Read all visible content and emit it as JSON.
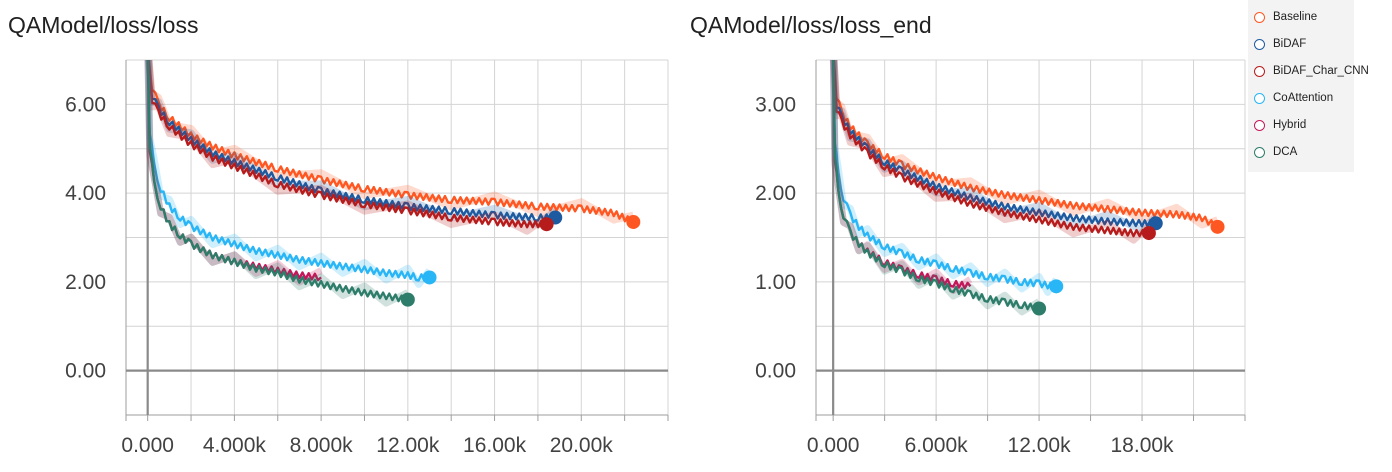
{
  "legend": {
    "position": "top-right",
    "items": [
      {
        "name": "Baseline",
        "color": "#ff5722"
      },
      {
        "name": "BiDAF",
        "color": "#1e5aa0"
      },
      {
        "name": "BiDAF_Char_CNN",
        "color": "#b71c1c"
      },
      {
        "name": "CoAttention",
        "color": "#29b6f6"
      },
      {
        "name": "Hybrid",
        "color": "#c2185b"
      },
      {
        "name": "DCA",
        "color": "#2e7d6b"
      }
    ]
  },
  "chart_data": [
    {
      "type": "line",
      "title": "QAModel/loss/loss",
      "xlabel": "",
      "ylabel": "",
      "xlim": [
        -1000,
        24000
      ],
      "ylim": [
        -1.0,
        7.0
      ],
      "grid": true,
      "xticks": [
        0,
        4000,
        8000,
        12000,
        16000,
        20000
      ],
      "xtick_labels": [
        "0.000",
        "4.000k",
        "8.000k",
        "12.00k",
        "16.00k",
        "20.00k"
      ],
      "yticks": [
        0,
        2,
        4,
        6
      ],
      "ytick_labels": [
        "0.00",
        "2.00",
        "4.00",
        "6.00"
      ],
      "series": [
        {
          "name": "Baseline",
          "color": "#ff5722",
          "x": [
            0,
            200,
            500,
            1000,
            2000,
            3000,
            4000,
            6000,
            8000,
            10000,
            12000,
            14000,
            16000,
            18000,
            20000,
            21500,
            22400
          ],
          "y": [
            7.2,
            6.4,
            6.0,
            5.7,
            5.3,
            5.05,
            4.85,
            4.55,
            4.3,
            4.1,
            3.95,
            3.85,
            3.8,
            3.7,
            3.65,
            3.55,
            3.35
          ]
        },
        {
          "name": "BiDAF",
          "color": "#1e5aa0",
          "x": [
            0,
            200,
            500,
            1000,
            2000,
            3000,
            4000,
            6000,
            8000,
            10000,
            12000,
            14000,
            16000,
            18000,
            18800
          ],
          "y": [
            7.2,
            6.2,
            5.9,
            5.6,
            5.2,
            4.9,
            4.7,
            4.35,
            4.05,
            3.85,
            3.7,
            3.6,
            3.5,
            3.45,
            3.45
          ]
        },
        {
          "name": "BiDAF_Char_CNN",
          "color": "#b71c1c",
          "x": [
            0,
            200,
            500,
            1000,
            2000,
            3000,
            4000,
            6000,
            8000,
            10000,
            12000,
            14000,
            16000,
            17500,
            18400
          ],
          "y": [
            7.2,
            6.1,
            5.8,
            5.5,
            5.1,
            4.8,
            4.6,
            4.2,
            3.95,
            3.75,
            3.6,
            3.45,
            3.35,
            3.3,
            3.3
          ]
        },
        {
          "name": "CoAttention",
          "color": "#29b6f6",
          "x": [
            0,
            100,
            300,
            600,
            1000,
            1500,
            2000,
            3000,
            4000,
            5000,
            6000,
            7000,
            8000,
            9000,
            10000,
            11000,
            12000,
            12500,
            13000
          ],
          "y": [
            7.2,
            5.4,
            4.6,
            4.1,
            3.7,
            3.45,
            3.25,
            3.0,
            2.85,
            2.7,
            2.6,
            2.5,
            2.42,
            2.35,
            2.28,
            2.2,
            2.15,
            2.1,
            2.1
          ]
        },
        {
          "name": "Hybrid",
          "color": "#c2185b",
          "x": [
            0,
            100,
            300,
            600,
            1000,
            1500,
            2000,
            3000,
            4000,
            5000,
            6000,
            7000,
            8000
          ],
          "y": [
            7.2,
            5.0,
            4.2,
            3.7,
            3.3,
            3.05,
            2.85,
            2.6,
            2.45,
            2.35,
            2.25,
            2.15,
            2.1
          ]
        },
        {
          "name": "DCA",
          "color": "#2e7d6b",
          "x": [
            0,
            100,
            300,
            600,
            1000,
            1500,
            2000,
            3000,
            4000,
            5000,
            6000,
            7000,
            8000,
            9000,
            10000,
            11000,
            12000
          ],
          "y": [
            7.2,
            5.1,
            4.2,
            3.7,
            3.3,
            3.05,
            2.85,
            2.6,
            2.45,
            2.3,
            2.2,
            2.05,
            1.95,
            1.85,
            1.75,
            1.68,
            1.6
          ]
        }
      ]
    },
    {
      "type": "line",
      "title": "QAModel/loss/loss_end",
      "xlabel": "",
      "ylabel": "",
      "xlim": [
        -1000,
        24000
      ],
      "ylim": [
        -0.5,
        3.5
      ],
      "grid": true,
      "xticks": [
        0,
        6000,
        12000,
        18000
      ],
      "xtick_labels": [
        "0.000",
        "6.000k",
        "12.00k",
        "18.00k"
      ],
      "yticks": [
        0,
        1,
        2,
        3
      ],
      "ytick_labels": [
        "0.00",
        "1.00",
        "2.00",
        "3.00"
      ],
      "series": [
        {
          "name": "Baseline",
          "color": "#ff5722",
          "x": [
            0,
            200,
            500,
            1000,
            2000,
            3000,
            4000,
            6000,
            8000,
            10000,
            12000,
            14000,
            16000,
            18000,
            20000,
            21500,
            22400
          ],
          "y": [
            3.6,
            3.1,
            2.9,
            2.75,
            2.55,
            2.42,
            2.32,
            2.18,
            2.06,
            1.98,
            1.92,
            1.86,
            1.82,
            1.78,
            1.76,
            1.72,
            1.62
          ]
        },
        {
          "name": "BiDAF",
          "color": "#1e5aa0",
          "x": [
            0,
            200,
            500,
            1000,
            2000,
            3000,
            4000,
            6000,
            8000,
            10000,
            12000,
            14000,
            16000,
            18000,
            18800
          ],
          "y": [
            3.6,
            3.0,
            2.85,
            2.7,
            2.5,
            2.35,
            2.25,
            2.08,
            1.95,
            1.85,
            1.78,
            1.72,
            1.68,
            1.66,
            1.66
          ]
        },
        {
          "name": "BiDAF_Char_CNN",
          "color": "#b71c1c",
          "x": [
            0,
            200,
            500,
            1000,
            2000,
            3000,
            4000,
            6000,
            8000,
            10000,
            12000,
            14000,
            16000,
            17500,
            18400
          ],
          "y": [
            3.6,
            2.95,
            2.8,
            2.65,
            2.45,
            2.3,
            2.18,
            2.02,
            1.88,
            1.78,
            1.7,
            1.62,
            1.58,
            1.55,
            1.55
          ]
        },
        {
          "name": "CoAttention",
          "color": "#29b6f6",
          "x": [
            0,
            100,
            300,
            600,
            1000,
            1500,
            2000,
            3000,
            4000,
            5000,
            6000,
            7000,
            8000,
            9000,
            10000,
            11000,
            12000,
            12500,
            13000
          ],
          "y": [
            3.6,
            2.6,
            2.2,
            1.95,
            1.75,
            1.62,
            1.52,
            1.4,
            1.32,
            1.25,
            1.2,
            1.15,
            1.1,
            1.06,
            1.03,
            1.0,
            0.98,
            0.96,
            0.95
          ]
        },
        {
          "name": "Hybrid",
          "color": "#c2185b",
          "x": [
            0,
            100,
            300,
            600,
            1000,
            1500,
            2000,
            3000,
            4000,
            5000,
            6000,
            7000,
            8000
          ],
          "y": [
            3.6,
            2.4,
            2.0,
            1.75,
            1.55,
            1.43,
            1.34,
            1.22,
            1.14,
            1.08,
            1.03,
            0.98,
            0.95
          ]
        },
        {
          "name": "DCA",
          "color": "#2e7d6b",
          "x": [
            0,
            100,
            300,
            600,
            1000,
            1500,
            2000,
            3000,
            4000,
            5000,
            6000,
            7000,
            8000,
            9000,
            10000,
            11000,
            12000
          ],
          "y": [
            3.6,
            2.45,
            2.0,
            1.75,
            1.55,
            1.43,
            1.33,
            1.2,
            1.12,
            1.04,
            0.98,
            0.92,
            0.86,
            0.81,
            0.77,
            0.74,
            0.7
          ]
        }
      ]
    }
  ]
}
